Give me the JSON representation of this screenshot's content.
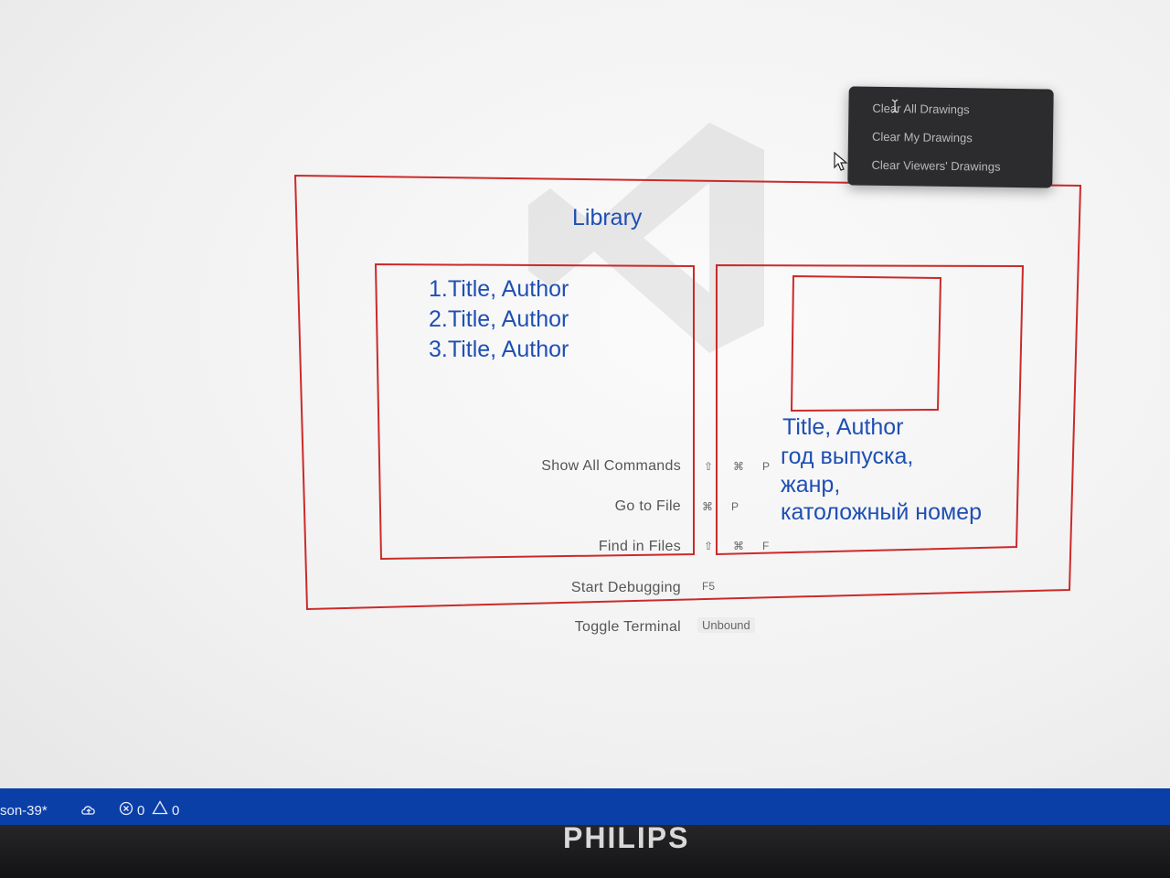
{
  "drawing": {
    "title": "Library",
    "list_items": [
      "1.Title, Author",
      "2.Title, Author",
      "3.Title, Author"
    ],
    "detail_lines": [
      "Title, Author",
      "год выпуска,",
      "жанр,",
      "католожный номер"
    ]
  },
  "commands": {
    "show_all": {
      "label": "Show All Commands",
      "keys": [
        "⇧",
        "⌘",
        "P"
      ]
    },
    "go_to_file": {
      "label": "Go to File",
      "keys": [
        "⌘",
        "P"
      ]
    },
    "find_in_files": {
      "label": "Find in Files",
      "keys": [
        "⇧",
        "⌘",
        "F"
      ]
    },
    "start_debugging": {
      "label": "Start Debugging",
      "keys": [
        "F5"
      ]
    },
    "toggle_terminal": {
      "label": "Toggle Terminal",
      "binding": "Unbound"
    }
  },
  "context_menu": {
    "items": [
      "Clear All Drawings",
      "Clear My Drawings",
      "Clear Viewers' Drawings"
    ]
  },
  "status_bar": {
    "branch": "son-39*",
    "errors": "0",
    "warnings": "0"
  },
  "monitor": {
    "brand": "PHILIPS"
  },
  "colors": {
    "drawing_stroke": "#cc2a2a",
    "drawing_text": "#1f4fb3",
    "status_bar": "#0b3fa8",
    "menu_bg": "#2c2c2e"
  }
}
